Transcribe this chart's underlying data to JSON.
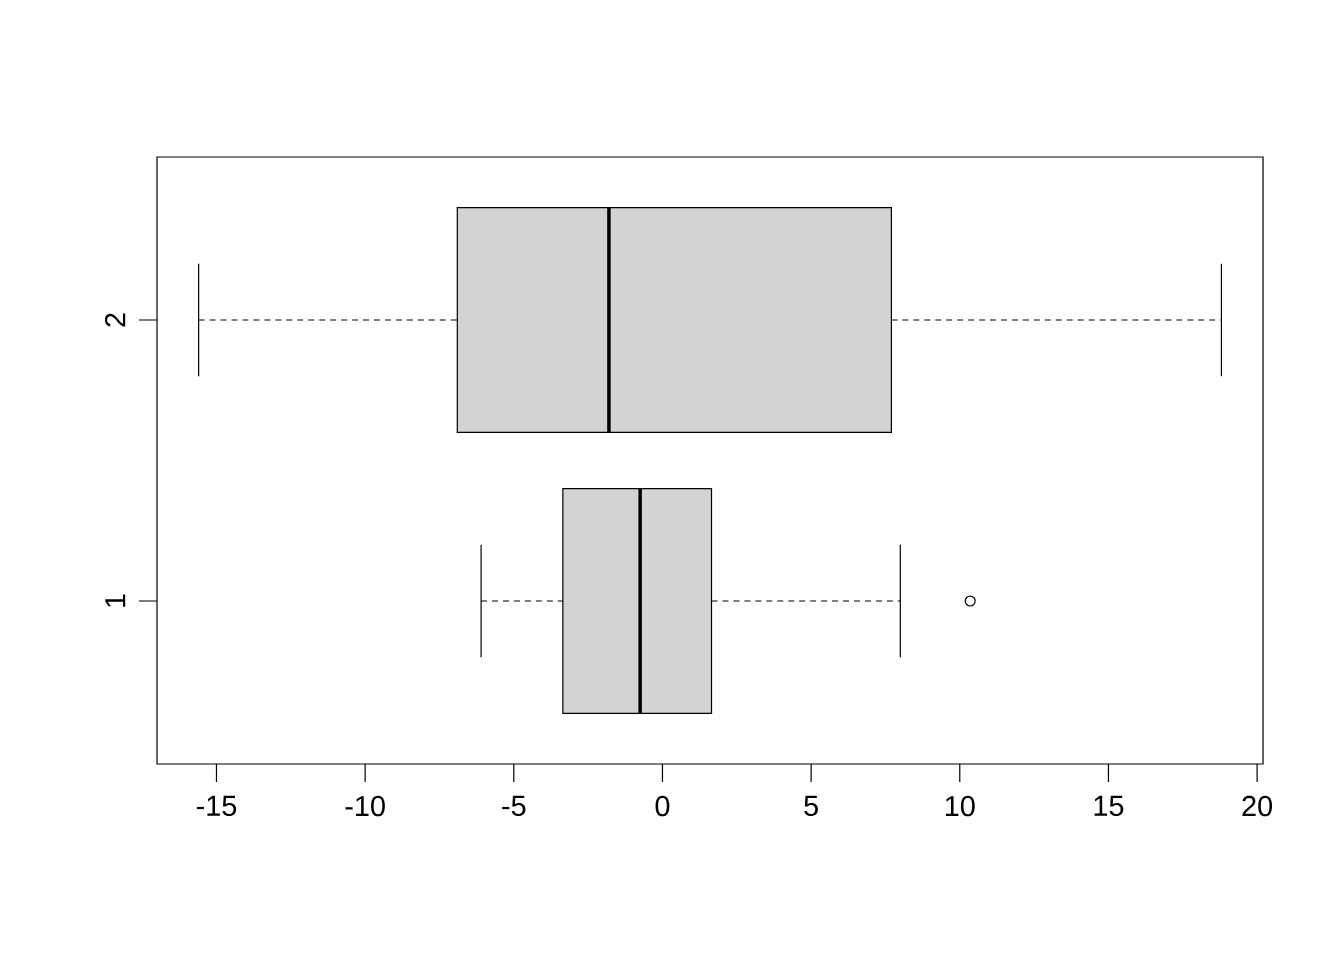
{
  "chart_data": {
    "type": "box",
    "orientation": "horizontal",
    "color": "#d3d3d3",
    "categories": [
      "2",
      "1"
    ],
    "boxes": [
      {
        "low": -15.6,
        "q1": -6.9,
        "median": -1.8,
        "q3": 7.7,
        "high": 18.8
      },
      {
        "low": -6.1,
        "q1": -3.35,
        "median": -0.75,
        "q3": 1.65,
        "high": 8.0,
        "outliers": [
          10.35
        ]
      }
    ],
    "xlim": [
      -17,
      20.2
    ],
    "xticks": [
      -15,
      -10,
      -5,
      0,
      5,
      10,
      15,
      20
    ]
  }
}
